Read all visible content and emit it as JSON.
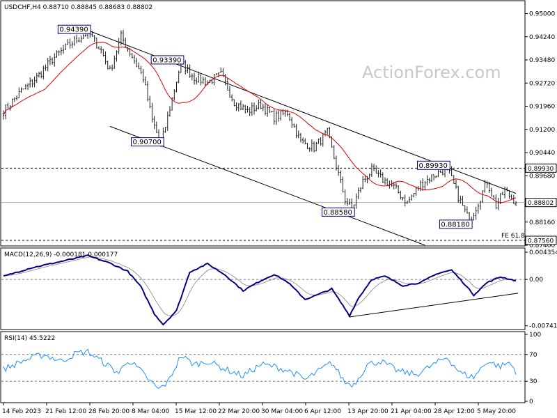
{
  "header": {
    "main": "USDCHF,H4  0.88710 0.88845 0.88683 0.88802",
    "macd": "MACD(12,26,9) -0.000181 0.000177",
    "rsi": "RSI(14) 45.5222"
  },
  "watermark": "ActionForex.com",
  "colors": {
    "candle": "#1c1c1c",
    "ma": "#d80000",
    "macd": "#000080",
    "signal": "#9a9a9a",
    "rsi": "#1e90ff",
    "label_border": "#000080"
  },
  "chart_data": [
    {
      "type": "candlestick",
      "symbol": "USDCHF",
      "timeframe": "H4",
      "ohlc_last": {
        "open": 0.8871,
        "high": 0.88845,
        "low": 0.88683,
        "close": 0.88802
      },
      "ylim": [
        0.874,
        0.954
      ],
      "y_ticks": [
        {
          "v": 0.95,
          "t": "0.95000"
        },
        {
          "v": 0.9424,
          "t": "0.94240"
        },
        {
          "v": 0.9348,
          "t": "0.93480"
        },
        {
          "v": 0.9272,
          "t": "0.92720"
        },
        {
          "v": 0.9196,
          "t": "0.91960"
        },
        {
          "v": 0.912,
          "t": "0.91200"
        },
        {
          "v": 0.9044,
          "t": "0.90440"
        },
        {
          "v": 0.8968,
          "t": "0.89680"
        },
        {
          "v": 0.8816,
          "t": "0.88160"
        },
        {
          "v": 0.874,
          "t": "0.87400"
        }
      ],
      "x_ticks": [
        "14 Feb 2023",
        "21 Feb 12:00",
        "28 Feb 20:00",
        "8 Mar 04:00",
        "15 Mar 12:00",
        "22 Mar 20:00",
        "30 Mar 04:00",
        "6 Apr 12:00",
        "13 Apr 20:00",
        "21 Apr 04:00",
        "28 Apr 12:00",
        "5 May 20:00"
      ],
      "anchors": [
        {
          "i": 0,
          "v": 0.918
        },
        {
          "i": 8,
          "v": 0.9245
        },
        {
          "i": 15,
          "v": 0.929
        },
        {
          "i": 22,
          "v": 0.935
        },
        {
          "i": 30,
          "v": 0.94
        },
        {
          "i": 38,
          "v": 0.9439
        },
        {
          "i": 44,
          "v": 0.938
        },
        {
          "i": 48,
          "v": 0.931
        },
        {
          "i": 53,
          "v": 0.9425
        },
        {
          "i": 58,
          "v": 0.936
        },
        {
          "i": 63,
          "v": 0.929
        },
        {
          "i": 67,
          "v": 0.915
        },
        {
          "i": 71,
          "v": 0.907
        },
        {
          "i": 76,
          "v": 0.922
        },
        {
          "i": 80,
          "v": 0.9339
        },
        {
          "i": 86,
          "v": 0.929
        },
        {
          "i": 92,
          "v": 0.9275
        },
        {
          "i": 98,
          "v": 0.93
        },
        {
          "i": 104,
          "v": 0.921
        },
        {
          "i": 110,
          "v": 0.918
        },
        {
          "i": 116,
          "v": 0.92
        },
        {
          "i": 122,
          "v": 0.916
        },
        {
          "i": 128,
          "v": 0.9175
        },
        {
          "i": 134,
          "v": 0.908
        },
        {
          "i": 140,
          "v": 0.906
        },
        {
          "i": 146,
          "v": 0.911
        },
        {
          "i": 150,
          "v": 0.9
        },
        {
          "i": 154,
          "v": 0.889
        },
        {
          "i": 157,
          "v": 0.8858
        },
        {
          "i": 162,
          "v": 0.895
        },
        {
          "i": 166,
          "v": 0.8985
        },
        {
          "i": 170,
          "v": 0.896
        },
        {
          "i": 176,
          "v": 0.893
        },
        {
          "i": 182,
          "v": 0.888
        },
        {
          "i": 188,
          "v": 0.894
        },
        {
          "i": 194,
          "v": 0.897
        },
        {
          "i": 200,
          "v": 0.8993
        },
        {
          "i": 205,
          "v": 0.89
        },
        {
          "i": 210,
          "v": 0.8818
        },
        {
          "i": 214,
          "v": 0.888
        },
        {
          "i": 218,
          "v": 0.895
        },
        {
          "i": 222,
          "v": 0.887
        },
        {
          "i": 226,
          "v": 0.892
        },
        {
          "i": 231,
          "v": 0.888
        }
      ],
      "bar_count": 232,
      "horizontal_lines": [
        {
          "value": 0.8993,
          "style": "dashed",
          "label": "0.89930"
        },
        {
          "value": 0.88802,
          "style": "solid",
          "color": "#b0b0b0",
          "label": "0.88802"
        },
        {
          "value": 0.8756,
          "style": "dashed",
          "label": "0.87560",
          "note": "FE 61.8"
        }
      ],
      "annotations": [
        {
          "text": "0.94390",
          "bar": 38,
          "value": 0.9439,
          "pos": "left"
        },
        {
          "text": "0.93390",
          "bar": 80,
          "value": 0.9339,
          "pos": "left"
        },
        {
          "text": "0.90700",
          "bar": 71,
          "value": 0.907,
          "pos": "left"
        },
        {
          "text": "0.88580",
          "bar": 157,
          "value": 0.8858,
          "pos": "left"
        },
        {
          "text": "0.89930",
          "bar": 200,
          "value": 0.8993,
          "pos": "left"
        },
        {
          "text": "0.88180",
          "bar": 210,
          "value": 0.8818,
          "pos": "left"
        }
      ],
      "trendlines": [
        {
          "from": {
            "bar": 38,
            "value": 0.9445
          },
          "to": {
            "bar": 231,
            "value": 0.891
          }
        },
        {
          "from": {
            "bar": 48,
            "value": 0.913
          },
          "to": {
            "bar": 190,
            "value": 0.874
          }
        }
      ],
      "moving_average": {
        "color": "#d80000",
        "period": 20
      }
    },
    {
      "type": "line",
      "name": "MACD(12,26,9)",
      "ylim": [
        -0.0079,
        0.0048
      ],
      "y_ticks": [
        {
          "v": 0.004354,
          "t": "0.004354"
        },
        {
          "v": 0.0,
          "t": "0.00"
        },
        {
          "v": -0.007417,
          "t": "-0.007417"
        }
      ],
      "anchors": [
        {
          "i": 0,
          "v": 0.0005
        },
        {
          "i": 12,
          "v": 0.0018
        },
        {
          "i": 25,
          "v": 0.0028
        },
        {
          "i": 38,
          "v": 0.0038
        },
        {
          "i": 48,
          "v": 0.0026
        },
        {
          "i": 56,
          "v": 0.0013
        },
        {
          "i": 62,
          "v": -0.0012
        },
        {
          "i": 68,
          "v": -0.0055
        },
        {
          "i": 72,
          "v": -0.0072
        },
        {
          "i": 78,
          "v": -0.005
        },
        {
          "i": 84,
          "v": 0.0012
        },
        {
          "i": 92,
          "v": 0.0025
        },
        {
          "i": 100,
          "v": 0.0007
        },
        {
          "i": 108,
          "v": -0.0018
        },
        {
          "i": 116,
          "v": -0.0002
        },
        {
          "i": 122,
          "v": 0.0008
        },
        {
          "i": 128,
          "v": -0.0004
        },
        {
          "i": 136,
          "v": -0.0032
        },
        {
          "i": 142,
          "v": -0.0024
        },
        {
          "i": 148,
          "v": -0.0015
        },
        {
          "i": 156,
          "v": -0.0058
        },
        {
          "i": 160,
          "v": -0.003
        },
        {
          "i": 166,
          "v": 0.0
        },
        {
          "i": 172,
          "v": 0.0005
        },
        {
          "i": 180,
          "v": -0.001
        },
        {
          "i": 188,
          "v": -0.0005
        },
        {
          "i": 196,
          "v": 0.001
        },
        {
          "i": 202,
          "v": 0.0015
        },
        {
          "i": 208,
          "v": -0.0008
        },
        {
          "i": 212,
          "v": -0.0025
        },
        {
          "i": 218,
          "v": -0.0005
        },
        {
          "i": 224,
          "v": 0.0004
        },
        {
          "i": 231,
          "v": -0.0002
        }
      ],
      "trendline": {
        "from": {
          "bar": 156,
          "value": -0.006
        },
        "to": {
          "bar": 232,
          "value": -0.0022
        }
      }
    },
    {
      "type": "line",
      "name": "RSI(14)",
      "ylim": [
        0,
        100
      ],
      "y_ticks": [
        {
          "v": 100,
          "t": "100"
        },
        {
          "v": 70,
          "t": "70"
        },
        {
          "v": 30,
          "t": "30"
        },
        {
          "v": 0,
          "t": "0"
        }
      ],
      "levels": [
        70,
        30
      ],
      "anchors": [
        {
          "i": 0,
          "v": 48
        },
        {
          "i": 10,
          "v": 62
        },
        {
          "i": 18,
          "v": 70
        },
        {
          "i": 26,
          "v": 60
        },
        {
          "i": 33,
          "v": 72
        },
        {
          "i": 38,
          "v": 74
        },
        {
          "i": 46,
          "v": 56
        },
        {
          "i": 52,
          "v": 42
        },
        {
          "i": 56,
          "v": 62
        },
        {
          "i": 62,
          "v": 45
        },
        {
          "i": 66,
          "v": 30
        },
        {
          "i": 70,
          "v": 18
        },
        {
          "i": 74,
          "v": 28
        },
        {
          "i": 80,
          "v": 68
        },
        {
          "i": 86,
          "v": 55
        },
        {
          "i": 92,
          "v": 60
        },
        {
          "i": 100,
          "v": 48
        },
        {
          "i": 108,
          "v": 38
        },
        {
          "i": 116,
          "v": 55
        },
        {
          "i": 122,
          "v": 52
        },
        {
          "i": 130,
          "v": 44
        },
        {
          "i": 136,
          "v": 32
        },
        {
          "i": 142,
          "v": 45
        },
        {
          "i": 148,
          "v": 58
        },
        {
          "i": 154,
          "v": 28
        },
        {
          "i": 158,
          "v": 25
        },
        {
          "i": 164,
          "v": 55
        },
        {
          "i": 170,
          "v": 60
        },
        {
          "i": 178,
          "v": 45
        },
        {
          "i": 186,
          "v": 40
        },
        {
          "i": 194,
          "v": 55
        },
        {
          "i": 200,
          "v": 66
        },
        {
          "i": 206,
          "v": 42
        },
        {
          "i": 212,
          "v": 36
        },
        {
          "i": 218,
          "v": 60
        },
        {
          "i": 224,
          "v": 52
        },
        {
          "i": 228,
          "v": 58
        },
        {
          "i": 231,
          "v": 45
        }
      ]
    }
  ]
}
